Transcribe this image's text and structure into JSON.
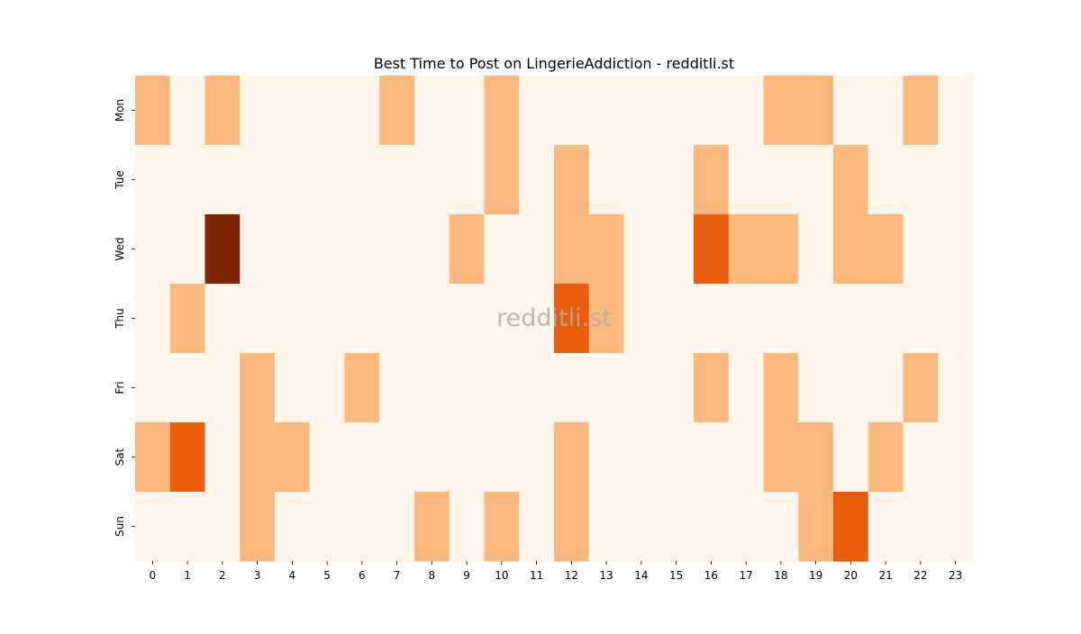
{
  "chart_data": {
    "type": "heatmap",
    "title": "Best Time to Post on LingerieAddiction - redditli.st",
    "watermark": "redditli.st",
    "xlabel": "",
    "ylabel": "",
    "x_categories": [
      "0",
      "1",
      "2",
      "3",
      "4",
      "5",
      "6",
      "7",
      "8",
      "9",
      "10",
      "11",
      "12",
      "13",
      "14",
      "15",
      "16",
      "17",
      "18",
      "19",
      "20",
      "21",
      "22",
      "23"
    ],
    "y_categories": [
      "Mon",
      "Tue",
      "Wed",
      "Thu",
      "Fri",
      "Sat",
      "Sun"
    ],
    "values": [
      [
        1,
        0,
        1,
        0,
        0,
        0,
        0,
        1,
        0,
        0,
        1,
        0,
        0,
        0,
        0,
        0,
        0,
        0,
        1,
        1,
        0,
        0,
        1,
        0
      ],
      [
        0,
        0,
        0,
        0,
        0,
        0,
        0,
        0,
        0,
        0,
        1,
        0,
        1,
        0,
        0,
        0,
        1,
        0,
        0,
        0,
        1,
        0,
        0,
        0
      ],
      [
        0,
        0,
        4,
        0,
        0,
        0,
        0,
        0,
        0,
        1,
        0,
        0,
        1,
        1,
        0,
        0,
        2,
        1,
        1,
        0,
        1,
        1,
        0,
        0
      ],
      [
        0,
        1,
        0,
        0,
        0,
        0,
        0,
        0,
        0,
        0,
        0,
        0,
        2,
        1,
        0,
        0,
        0,
        0,
        0,
        0,
        0,
        0,
        0,
        0
      ],
      [
        0,
        0,
        0,
        1,
        0,
        0,
        1,
        0,
        0,
        0,
        0,
        0,
        0,
        0,
        0,
        0,
        1,
        0,
        1,
        0,
        0,
        0,
        1,
        0
      ],
      [
        1,
        2,
        0,
        1,
        1,
        0,
        0,
        0,
        0,
        0,
        0,
        0,
        1,
        0,
        0,
        0,
        0,
        0,
        1,
        1,
        0,
        1,
        0,
        0
      ],
      [
        0,
        0,
        0,
        1,
        0,
        0,
        0,
        0,
        1,
        0,
        1,
        0,
        1,
        0,
        0,
        0,
        0,
        0,
        0,
        1,
        2,
        0,
        0,
        0
      ]
    ],
    "colormap": "Oranges",
    "colors": {
      "0": "#fff5eb",
      "1": "#fdb97d",
      "2": "#e95e0d",
      "4": "#7f2704"
    },
    "grid": false,
    "colorbar": false
  }
}
